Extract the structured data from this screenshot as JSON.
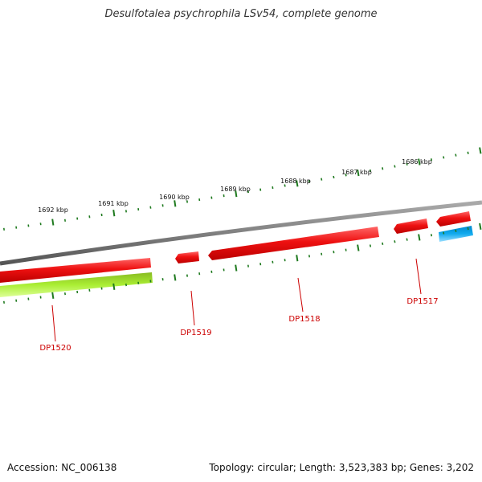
{
  "title": "Desulfotalea psychrophila LSv54, complete genome",
  "footer": {
    "accession": "Accession: NC_006138",
    "summary": "Topology: circular; Length: 3,523,383 bp; Genes: 3,202"
  },
  "colors": {
    "backbone": "#808080",
    "tick": "#1f7a1f",
    "gene_red": "#ee1111",
    "gene_green": "#aaee33",
    "gene_blue": "#11aaee",
    "label": "#cc0000"
  },
  "kbp_labels": [
    "1686 kbp",
    "1687 kbp",
    "1688 kbp",
    "1689 kbp",
    "1690 kbp",
    "1691 kbp",
    "1692 kbp"
  ],
  "genes": [
    {
      "label": "DP1517"
    },
    {
      "label": "DP1518"
    },
    {
      "label": "DP1519"
    },
    {
      "label": "DP1520"
    }
  ]
}
